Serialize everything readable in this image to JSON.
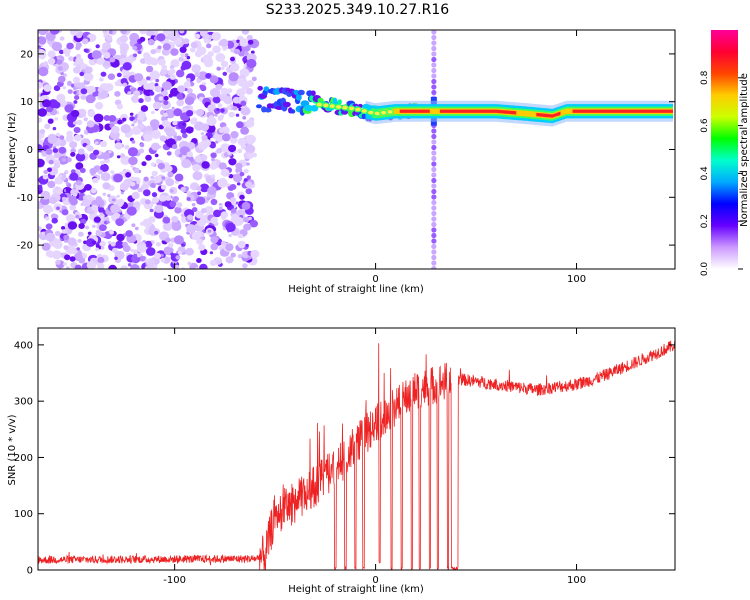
{
  "title": "S233.2025.349.10.27.R16",
  "chart_data": [
    {
      "type": "heatmap",
      "name": "spectrogram",
      "xlabel": "Height of straight line (km)",
      "ylabel": "Frequency (Hz)",
      "xlim": [
        -168,
        149
      ],
      "ylim": [
        -25,
        25
      ],
      "xticks": [
        -100,
        0,
        100
      ],
      "xtick_labels": [
        "-100",
        "0",
        "100"
      ],
      "yticks": [
        -20,
        -10,
        0,
        10,
        20
      ],
      "ytick_labels": [
        "-20",
        "-10",
        "0",
        "10",
        "20"
      ],
      "noise_region_x": [
        -168,
        -60
      ],
      "spike_line_x": 29,
      "signal_track": {
        "x": [
          -58,
          -50,
          -40,
          -30,
          -20,
          -10,
          0,
          10,
          20,
          28,
          35,
          60,
          75,
          88,
          95,
          120,
          148
        ],
        "freq": [
          11,
          10.5,
          10,
          9.5,
          9,
          8.5,
          7.5,
          8,
          8,
          8,
          8,
          8,
          7.5,
          7,
          8,
          8,
          8
        ]
      },
      "colorbar": {
        "label": "Normalized spectral amplitude",
        "range": [
          0,
          1
        ],
        "ticks": [
          0.0,
          0.2,
          0.4,
          0.6,
          0.8
        ],
        "tick_labels": [
          "0.0",
          "0.2",
          "0.4",
          "0.6",
          "0.8"
        ],
        "colors": [
          "#ffffff",
          "#cc99ff",
          "#6600ff",
          "#0000ff",
          "#00aaff",
          "#00ffcc",
          "#00ff00",
          "#ccff00",
          "#ffcc00",
          "#ff4400",
          "#ff0033",
          "#ff0099"
        ]
      }
    },
    {
      "type": "line",
      "name": "snr",
      "xlabel": "Height of straight line (km)",
      "ylabel": "SNR (10 * v/v)",
      "xlim": [
        -168,
        149
      ],
      "ylim": [
        0,
        430
      ],
      "xticks": [
        -100,
        0,
        100
      ],
      "xtick_labels": [
        "-100",
        "0",
        "100"
      ],
      "yticks": [
        0,
        100,
        200,
        300,
        400
      ],
      "ytick_labels": [
        "0",
        "100",
        "200",
        "300",
        "400"
      ],
      "line_color": "#ee2222",
      "trend": {
        "x": [
          -168,
          -60,
          -55,
          -50,
          -40,
          -30,
          -20,
          -10,
          0,
          10,
          20,
          30,
          40,
          60,
          80,
          100,
          110,
          130,
          149
        ],
        "y": [
          18,
          20,
          25,
          100,
          120,
          150,
          180,
          220,
          260,
          290,
          320,
          330,
          340,
          330,
          320,
          330,
          340,
          370,
          400
        ]
      },
      "dropouts": {
        "x": [
          -20,
          -15,
          -10,
          -6,
          2,
          8,
          13,
          18,
          22,
          27,
          31,
          36,
          38,
          40
        ],
        "y": [
          0,
          0,
          0,
          0,
          10,
          0,
          0,
          0,
          0,
          0,
          0,
          0,
          0,
          0
        ]
      },
      "notes": "Noise-dominated ~10-30 below -60 km; rising scatter with deep dropouts between -20 and 40 km; ~320-340 plateau then rising to ~400 near 149 km."
    }
  ]
}
